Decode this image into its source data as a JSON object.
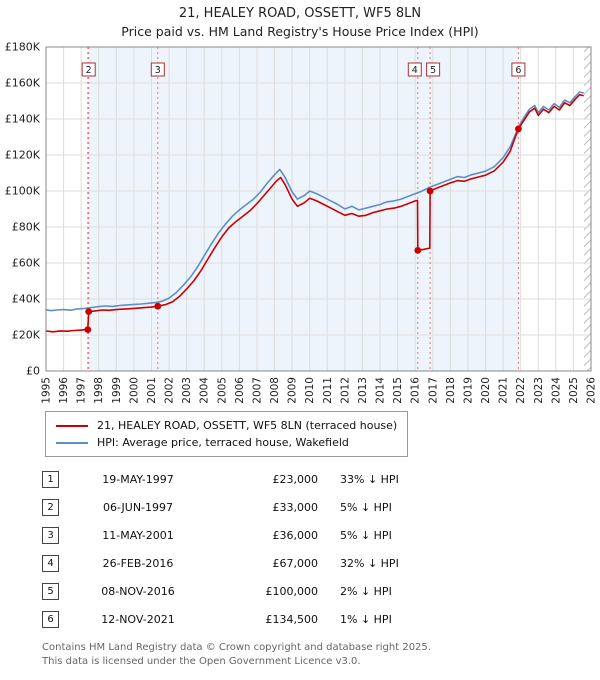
{
  "page": {
    "title": "21, HEALEY ROAD, OSSETT, WF5 8LN",
    "subtitle": "Price paid vs. HM Land Registry's House Price Index (HPI)"
  },
  "legend": [
    {
      "label": "21, HEALEY ROAD, OSSETT, WF5 8LN (terraced house)",
      "color": "#cc0000"
    },
    {
      "label": "HPI: Average price, terraced house, Wakefield",
      "color": "#5e8fc4"
    }
  ],
  "transactions": [
    {
      "num": "1",
      "date": "19-MAY-1997",
      "price": "£23,000",
      "hpi": "33% ↓ HPI"
    },
    {
      "num": "2",
      "date": "06-JUN-1997",
      "price": "£33,000",
      "hpi": "5% ↓ HPI"
    },
    {
      "num": "3",
      "date": "11-MAY-2001",
      "price": "£36,000",
      "hpi": "5% ↓ HPI"
    },
    {
      "num": "4",
      "date": "26-FEB-2016",
      "price": "£67,000",
      "hpi": "32% ↓ HPI"
    },
    {
      "num": "5",
      "date": "08-NOV-2016",
      "price": "£100,000",
      "hpi": "2% ↓ HPI"
    },
    {
      "num": "6",
      "date": "12-NOV-2021",
      "price": "£134,500",
      "hpi": "1% ↓ HPI"
    }
  ],
  "footer": {
    "line1": "Contains HM Land Registry data © Crown copyright and database right 2025.",
    "line2": "This data is licensed under the Open Government Licence v3.0."
  },
  "chart_data": {
    "type": "line",
    "title": "21, HEALEY ROAD, OSSETT, WF5 8LN",
    "subtitle": "Price paid vs. HM Land Registry's House Price Index (HPI)",
    "xlabel": "",
    "ylabel": "",
    "xlim": [
      1995,
      2026
    ],
    "ylim": [
      0,
      180000
    ],
    "grid": true,
    "legend_position": "below",
    "x_ticks": [
      1995,
      1996,
      1997,
      1998,
      1999,
      2000,
      2001,
      2002,
      2003,
      2004,
      2005,
      2006,
      2007,
      2008,
      2009,
      2010,
      2011,
      2012,
      2013,
      2014,
      2015,
      2016,
      2017,
      2018,
      2019,
      2020,
      2021,
      2022,
      2023,
      2024,
      2025,
      2026
    ],
    "y_ticks": [
      {
        "value": 0,
        "label": "£0"
      },
      {
        "value": 20000,
        "label": "£20K"
      },
      {
        "value": 40000,
        "label": "£40K"
      },
      {
        "value": 60000,
        "label": "£60K"
      },
      {
        "value": 80000,
        "label": "£80K"
      },
      {
        "value": 100000,
        "label": "£100K"
      },
      {
        "value": 120000,
        "label": "£120K"
      },
      {
        "value": 140000,
        "label": "£140K"
      },
      {
        "value": 160000,
        "label": "£160K"
      },
      {
        "value": 180000,
        "label": "£180K"
      }
    ],
    "shaded_region": {
      "from": 1997.43,
      "to": 2021.87,
      "color": "#dde9f7",
      "opacity": 0.5
    },
    "hatched_region": {
      "from": 2025.6,
      "to": 2026
    },
    "colors": {
      "price_line": "#cc0000",
      "hpi_line": "#5e8fc4",
      "dashed_marker_line": "#e57373",
      "marker_box_border": "#aa3333",
      "gridline": "#dddddd",
      "plot_border": "#888888"
    },
    "markers": [
      {
        "label": "1",
        "x": 1997.38,
        "y": 23000,
        "box": false,
        "dx": 0
      },
      {
        "label": "2",
        "x": 1997.43,
        "y": 33000,
        "box": true,
        "dx": 0
      },
      {
        "label": "3",
        "x": 2001.36,
        "y": 36000,
        "box": true,
        "dx": 0
      },
      {
        "label": "4",
        "x": 2016.15,
        "y": 67000,
        "box": true,
        "dx": -3
      },
      {
        "label": "5",
        "x": 2016.85,
        "y": 100000,
        "box": true,
        "dx": 3
      },
      {
        "label": "6",
        "x": 2021.87,
        "y": 134500,
        "box": true,
        "dx": 0
      }
    ],
    "series": [
      {
        "name": "21, HEALEY ROAD, OSSETT, WF5 8LN (terraced house)",
        "color": "#cc0000",
        "points": [
          [
            1995.0,
            22200
          ],
          [
            1995.4,
            21800
          ],
          [
            1995.8,
            22300
          ],
          [
            1996.2,
            22100
          ],
          [
            1996.6,
            22500
          ],
          [
            1997.0,
            22700
          ],
          [
            1997.38,
            23000
          ],
          [
            1997.43,
            33000
          ],
          [
            1997.8,
            33400
          ],
          [
            1998.2,
            33900
          ],
          [
            1998.6,
            33700
          ],
          [
            1999.0,
            34100
          ],
          [
            1999.4,
            34400
          ],
          [
            1999.8,
            34600
          ],
          [
            2000.2,
            34900
          ],
          [
            2000.6,
            35200
          ],
          [
            2001.0,
            35500
          ],
          [
            2001.36,
            36000
          ],
          [
            2001.8,
            36900
          ],
          [
            2002.2,
            38500
          ],
          [
            2002.6,
            41500
          ],
          [
            2003.0,
            45500
          ],
          [
            2003.4,
            50000
          ],
          [
            2003.8,
            55500
          ],
          [
            2004.2,
            62000
          ],
          [
            2004.6,
            68500
          ],
          [
            2005.0,
            74500
          ],
          [
            2005.4,
            79500
          ],
          [
            2005.8,
            83000
          ],
          [
            2006.2,
            86000
          ],
          [
            2006.6,
            89000
          ],
          [
            2007.0,
            93000
          ],
          [
            2007.4,
            97500
          ],
          [
            2007.8,
            102000
          ],
          [
            2008.1,
            105500
          ],
          [
            2008.35,
            107500
          ],
          [
            2008.6,
            103500
          ],
          [
            2009.0,
            95500
          ],
          [
            2009.3,
            91500
          ],
          [
            2009.7,
            93500
          ],
          [
            2010.0,
            96000
          ],
          [
            2010.4,
            94500
          ],
          [
            2010.8,
            92500
          ],
          [
            2011.2,
            90500
          ],
          [
            2011.6,
            88500
          ],
          [
            2012.0,
            86500
          ],
          [
            2012.4,
            87500
          ],
          [
            2012.8,
            86000
          ],
          [
            2013.2,
            86500
          ],
          [
            2013.6,
            88000
          ],
          [
            2014.0,
            89000
          ],
          [
            2014.4,
            90000
          ],
          [
            2014.8,
            90500
          ],
          [
            2015.2,
            91500
          ],
          [
            2015.6,
            93000
          ],
          [
            2016.0,
            94500
          ],
          [
            2016.13,
            94800
          ],
          [
            2016.15,
            67000
          ],
          [
            2016.5,
            67600
          ],
          [
            2016.83,
            68300
          ],
          [
            2016.85,
            100000
          ],
          [
            2017.2,
            101500
          ],
          [
            2017.6,
            103000
          ],
          [
            2018.0,
            104500
          ],
          [
            2018.4,
            105800
          ],
          [
            2018.8,
            105400
          ],
          [
            2019.2,
            106800
          ],
          [
            2019.6,
            107800
          ],
          [
            2020.0,
            108800
          ],
          [
            2020.5,
            111200
          ],
          [
            2021.0,
            116000
          ],
          [
            2021.4,
            122000
          ],
          [
            2021.87,
            134500
          ],
          [
            2022.2,
            139500
          ],
          [
            2022.5,
            144000
          ],
          [
            2022.8,
            146000
          ],
          [
            2023.0,
            142000
          ],
          [
            2023.3,
            145500
          ],
          [
            2023.6,
            143500
          ],
          [
            2023.9,
            147000
          ],
          [
            2024.2,
            145000
          ],
          [
            2024.5,
            149000
          ],
          [
            2024.8,
            147500
          ],
          [
            2025.1,
            151000
          ],
          [
            2025.35,
            153500
          ],
          [
            2025.55,
            153000
          ]
        ]
      },
      {
        "name": "HPI: Average price, terraced house, Wakefield",
        "color": "#5e8fc4",
        "points": [
          [
            1995.0,
            34000
          ],
          [
            1995.3,
            33500
          ],
          [
            1995.6,
            33900
          ],
          [
            1996.0,
            34100
          ],
          [
            1996.4,
            33800
          ],
          [
            1996.8,
            34500
          ],
          [
            1997.2,
            34800
          ],
          [
            1997.6,
            35300
          ],
          [
            1998.0,
            35800
          ],
          [
            1998.4,
            36100
          ],
          [
            1998.8,
            35900
          ],
          [
            1999.2,
            36400
          ],
          [
            1999.6,
            36700
          ],
          [
            2000.0,
            37000
          ],
          [
            2000.4,
            37200
          ],
          [
            2000.8,
            37600
          ],
          [
            2001.2,
            38000
          ],
          [
            2001.6,
            38800
          ],
          [
            2002.0,
            40500
          ],
          [
            2002.4,
            43500
          ],
          [
            2002.8,
            47500
          ],
          [
            2003.2,
            52000
          ],
          [
            2003.6,
            57500
          ],
          [
            2004.0,
            64000
          ],
          [
            2004.4,
            70500
          ],
          [
            2004.8,
            76500
          ],
          [
            2005.2,
            81500
          ],
          [
            2005.6,
            86000
          ],
          [
            2006.0,
            89500
          ],
          [
            2006.4,
            92500
          ],
          [
            2006.8,
            95500
          ],
          [
            2007.2,
            99500
          ],
          [
            2007.6,
            104500
          ],
          [
            2008.0,
            109000
          ],
          [
            2008.3,
            112000
          ],
          [
            2008.6,
            107500
          ],
          [
            2009.0,
            99500
          ],
          [
            2009.3,
            95500
          ],
          [
            2009.7,
            97500
          ],
          [
            2010.0,
            100000
          ],
          [
            2010.4,
            98500
          ],
          [
            2010.8,
            96500
          ],
          [
            2011.2,
            94500
          ],
          [
            2011.6,
            92500
          ],
          [
            2012.0,
            90000
          ],
          [
            2012.4,
            91500
          ],
          [
            2012.8,
            89500
          ],
          [
            2013.2,
            90500
          ],
          [
            2013.6,
            91500
          ],
          [
            2014.0,
            92500
          ],
          [
            2014.4,
            94000
          ],
          [
            2014.8,
            94500
          ],
          [
            2015.2,
            95500
          ],
          [
            2015.6,
            97000
          ],
          [
            2016.0,
            98500
          ],
          [
            2016.4,
            100000
          ],
          [
            2016.8,
            102000
          ],
          [
            2017.2,
            103500
          ],
          [
            2017.6,
            105000
          ],
          [
            2018.0,
            106500
          ],
          [
            2018.4,
            108000
          ],
          [
            2018.8,
            107500
          ],
          [
            2019.2,
            109000
          ],
          [
            2019.6,
            110000
          ],
          [
            2020.0,
            111000
          ],
          [
            2020.5,
            113500
          ],
          [
            2021.0,
            118500
          ],
          [
            2021.4,
            124500
          ],
          [
            2021.9,
            136000
          ],
          [
            2022.2,
            141000
          ],
          [
            2022.5,
            145500
          ],
          [
            2022.8,
            147500
          ],
          [
            2023.0,
            143500
          ],
          [
            2023.3,
            147000
          ],
          [
            2023.6,
            145000
          ],
          [
            2023.9,
            148500
          ],
          [
            2024.2,
            146500
          ],
          [
            2024.5,
            150500
          ],
          [
            2024.8,
            149000
          ],
          [
            2025.1,
            152500
          ],
          [
            2025.35,
            155000
          ],
          [
            2025.55,
            154500
          ]
        ]
      }
    ]
  }
}
